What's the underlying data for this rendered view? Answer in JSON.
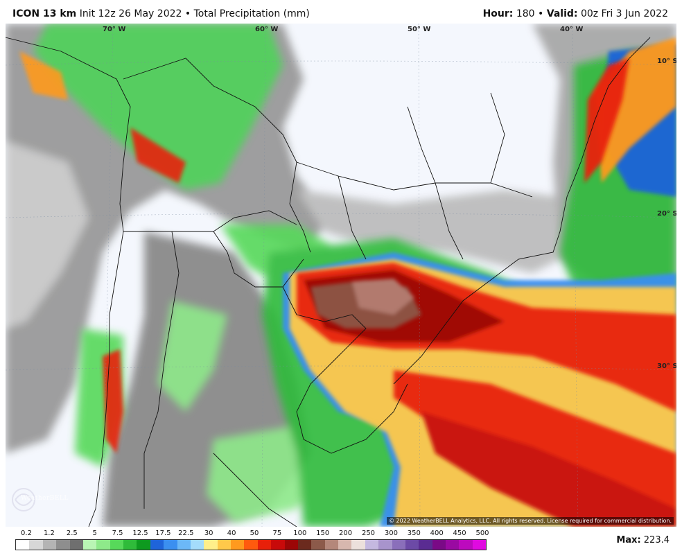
{
  "header": {
    "model": "ICON 13 km",
    "init": "Init 12z 26 May 2022",
    "bullet": "•",
    "field": "Total Precipitation (mm)",
    "hour_label": "Hour:",
    "hour_value": "180",
    "valid_label": "Valid:",
    "valid_value": "00z Fri 3 Jun 2022"
  },
  "map": {
    "lon_labels": [
      "70° W",
      "60° W",
      "50° W",
      "40° W"
    ],
    "lat_labels": [
      "10° S",
      "20° S",
      "30° S"
    ],
    "copyright": "© 2022 WeatherBELL Analytics, LLC. All rights reserved. License required for commercial distribution.",
    "logo_text": "WeatherBELL"
  },
  "legend": {
    "labels": [
      "0.2",
      "1.2",
      "2.5",
      "5",
      "7.5",
      "12.5",
      "17.5",
      "22.5",
      "30",
      "40",
      "50",
      "75",
      "100",
      "150",
      "200",
      "250",
      "300",
      "350",
      "400",
      "450",
      "500"
    ],
    "colors": [
      "#ffffff",
      "#d7d7d7",
      "#b4b4b4",
      "#8e8e8e",
      "#6f6f6f",
      "#b9f5b4",
      "#8ee98a",
      "#57d95a",
      "#2fbb3a",
      "#0e9a1f",
      "#1f64d9",
      "#3b8ff0",
      "#6cb8f7",
      "#a4dcfb",
      "#ffef8a",
      "#ffc94a",
      "#ff9a1e",
      "#ff5a0e",
      "#e8200a",
      "#c80a0a",
      "#9c0606",
      "#6b2a1e",
      "#8c5a4a",
      "#b4877a",
      "#d7b7ae",
      "#ece0dc",
      "#c4b8e0",
      "#a894cc",
      "#8a6fba",
      "#6c4aa6",
      "#5a2c92",
      "#7a0a86",
      "#9a0aa2",
      "#bc0abe",
      "#e00ae0"
    ]
  },
  "max": {
    "label": "Max:",
    "value": "223.4"
  }
}
